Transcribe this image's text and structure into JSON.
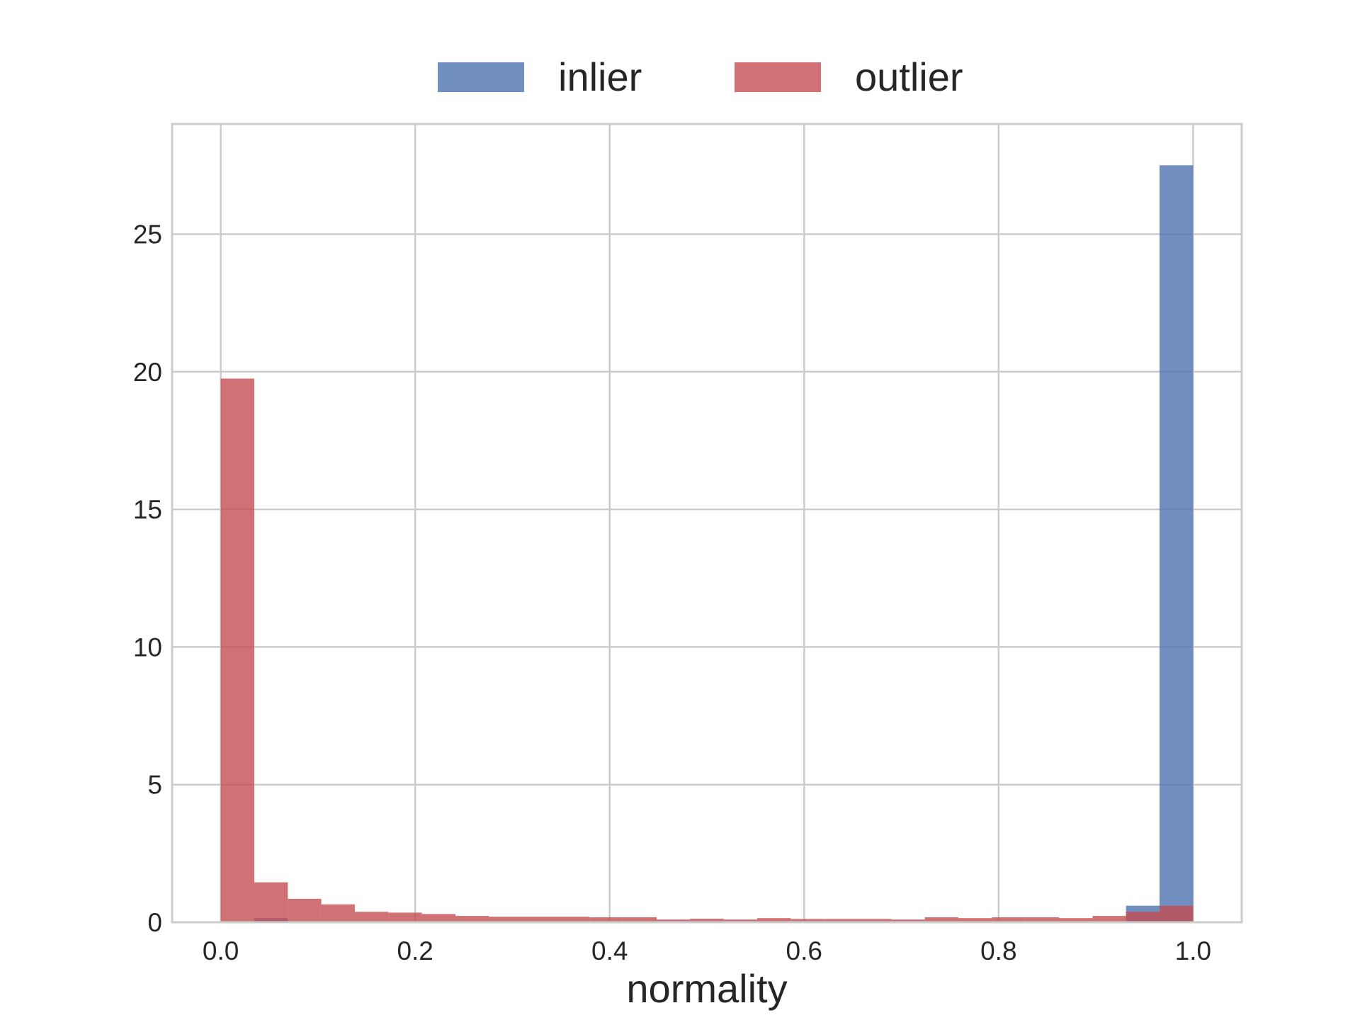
{
  "chart_data": {
    "type": "bar",
    "subtype": "overlaid-histogram",
    "title": "",
    "xlabel": "normality",
    "ylabel": "",
    "xlim": [
      -0.05,
      1.05
    ],
    "ylim": [
      0,
      29
    ],
    "xticks": [
      0.0,
      0.2,
      0.4,
      0.6,
      0.8,
      1.0
    ],
    "xtick_labels": [
      "0.0",
      "0.2",
      "0.4",
      "0.6",
      "0.8",
      "1.0"
    ],
    "yticks": [
      0,
      5,
      10,
      15,
      20,
      25
    ],
    "ytick_labels": [
      "0",
      "5",
      "10",
      "15",
      "20",
      "25"
    ],
    "grid": true,
    "legend_position": "top-center, above plot",
    "bin_edges": [
      0.0,
      0.0345,
      0.069,
      0.1034,
      0.1379,
      0.1724,
      0.2069,
      0.2414,
      0.2759,
      0.3103,
      0.3448,
      0.3793,
      0.4138,
      0.4483,
      0.4828,
      0.5172,
      0.5517,
      0.5862,
      0.6207,
      0.6552,
      0.6897,
      0.7241,
      0.7586,
      0.7931,
      0.8276,
      0.8621,
      0.8966,
      0.931,
      0.9655,
      1.0
    ],
    "series": [
      {
        "name": "inlier",
        "color": "#4c72b0",
        "values": [
          0,
          0.15,
          0,
          0,
          0,
          0,
          0,
          0,
          0,
          0,
          0,
          0,
          0,
          0,
          0,
          0,
          0,
          0,
          0,
          0,
          0,
          0,
          0,
          0,
          0,
          0,
          0,
          0.6,
          27.5
        ]
      },
      {
        "name": "outlier",
        "color": "#c44e52",
        "values": [
          19.75,
          1.45,
          0.85,
          0.65,
          0.38,
          0.35,
          0.3,
          0.23,
          0.2,
          0.2,
          0.2,
          0.18,
          0.18,
          0.1,
          0.13,
          0.1,
          0.15,
          0.12,
          0.12,
          0.12,
          0.1,
          0.18,
          0.15,
          0.18,
          0.18,
          0.15,
          0.23,
          0.38,
          0.6
        ]
      }
    ]
  }
}
